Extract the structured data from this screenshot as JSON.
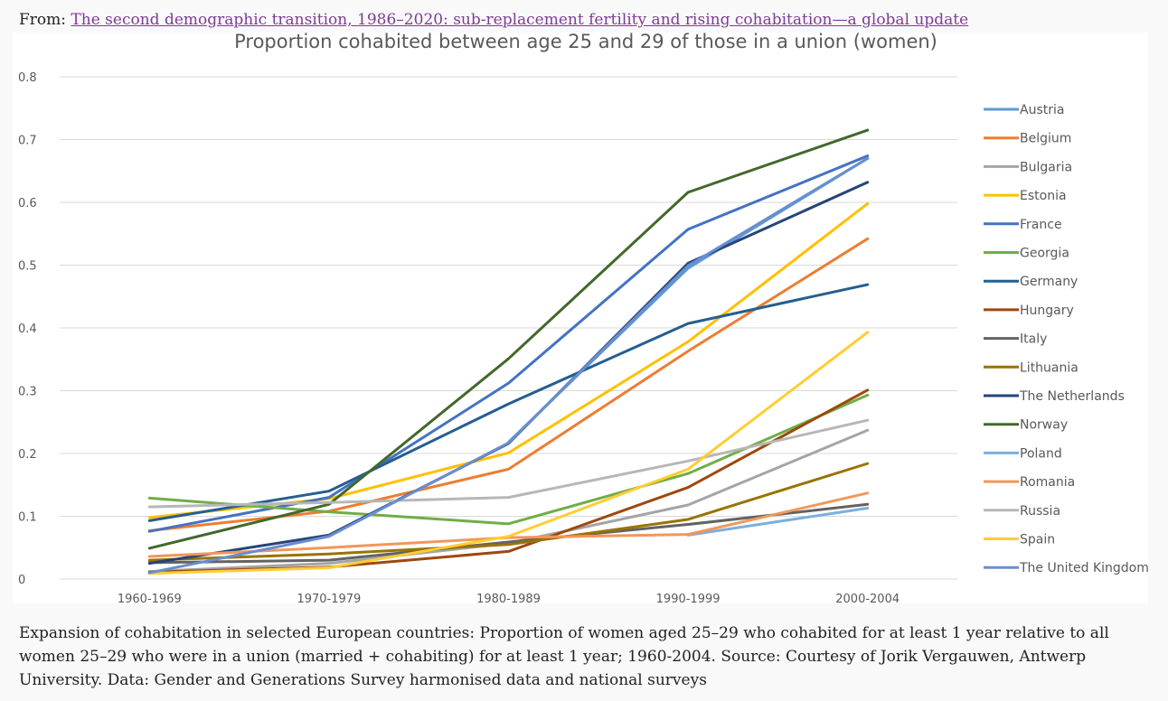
{
  "header": {
    "prefix": "From:",
    "link_text": "The second demographic transition, 1986–2020: sub-replacement fertility and rising cohabitation—a global update"
  },
  "caption": "Expansion of cohabitation in selected European countries: Proportion of women aged 25–29 who cohabited for at least 1 year relative to all women 25–29 who were in a union (married + cohabiting) for at least 1 year; 1960-2004. Source: Courtesy of Jorik Vergauwen, Antwerp University. Data: Gender and Generations Survey harmonised data and national surveys",
  "chart_data": {
    "type": "line",
    "title": "Proportion cohabited between age 25 and 29 of those in a union (women)",
    "xlabel": "",
    "ylabel": "",
    "categories": [
      "1960-1969",
      "1970-1979",
      "1980-1989",
      "1990-1999",
      "2000-2004"
    ],
    "ylim": [
      0,
      0.8
    ],
    "yticks": [
      0,
      0.1,
      0.2,
      0.3,
      0.4,
      0.5,
      0.6,
      0.7,
      0.8
    ],
    "ytick_labels": [
      "0",
      "0.1",
      "0.2",
      "0.3",
      "0.4",
      "0.5",
      "0.6",
      "0.7",
      "0.8"
    ],
    "grid": "horizontal",
    "legend_position": "right",
    "series": [
      {
        "name": "Austria",
        "color": "#5b9bd5",
        "values": [
          null,
          null,
          0.218,
          0.495,
          0.67
        ]
      },
      {
        "name": "Belgium",
        "color": "#ed7d31",
        "values": [
          0.077,
          0.108,
          0.175,
          0.363,
          0.542
        ]
      },
      {
        "name": "Bulgaria",
        "color": "#a5a5a5",
        "values": [
          0.012,
          0.025,
          0.057,
          0.118,
          0.237
        ]
      },
      {
        "name": "Estonia",
        "color": "#ffc000",
        "values": [
          0.098,
          0.128,
          0.201,
          0.378,
          0.598
        ]
      },
      {
        "name": "France",
        "color": "#4472c4",
        "values": [
          0.076,
          0.13,
          0.312,
          0.557,
          0.674
        ]
      },
      {
        "name": "Georgia",
        "color": "#70ad47",
        "values": [
          0.129,
          0.107,
          0.088,
          0.168,
          0.293
        ]
      },
      {
        "name": "Germany",
        "color": "#255e91",
        "values": [
          0.093,
          0.14,
          0.279,
          0.407,
          0.469
        ]
      },
      {
        "name": "Hungary",
        "color": "#9e480e",
        "values": [
          0.011,
          0.019,
          0.044,
          0.146,
          0.301
        ]
      },
      {
        "name": "Italy",
        "color": "#636363",
        "values": [
          0.026,
          0.03,
          0.059,
          0.087,
          0.119
        ]
      },
      {
        "name": "Lithuania",
        "color": "#997300",
        "values": [
          0.03,
          0.04,
          0.055,
          0.095,
          0.184
        ]
      },
      {
        "name": "The Netherlands",
        "color": "#264478",
        "values": [
          0.025,
          0.07,
          0.216,
          0.503,
          0.632
        ]
      },
      {
        "name": "Norway",
        "color": "#43682b",
        "values": [
          0.049,
          0.119,
          0.351,
          0.616,
          0.715
        ]
      },
      {
        "name": "Poland",
        "color": "#7cafdd",
        "values": [
          null,
          null,
          null,
          0.07,
          0.113
        ]
      },
      {
        "name": "Romania",
        "color": "#f1975a",
        "values": [
          0.036,
          0.05,
          0.066,
          0.071,
          0.137
        ]
      },
      {
        "name": "Russia",
        "color": "#b7b7b7",
        "values": [
          0.115,
          0.122,
          0.13,
          0.188,
          0.253
        ]
      },
      {
        "name": "Spain",
        "color": "#ffcd33",
        "values": [
          0.009,
          0.018,
          0.068,
          0.175,
          0.393
        ]
      },
      {
        "name": "The United Kingdom",
        "color": "#698ed0",
        "values": [
          0.01,
          0.068,
          0.217,
          0.499,
          0.67
        ]
      }
    ]
  }
}
